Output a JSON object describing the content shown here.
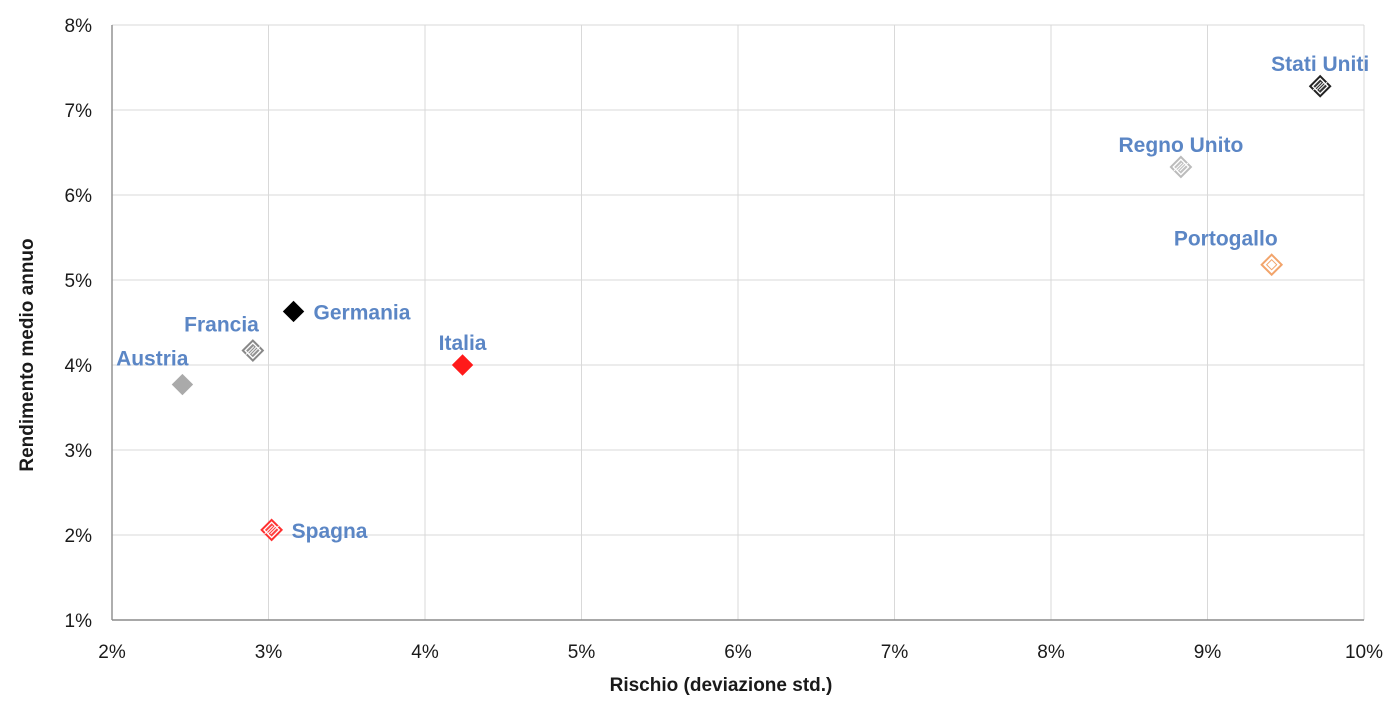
{
  "chart_data": {
    "type": "scatter",
    "title": "",
    "xlabel": "Rischio (deviazione std.)",
    "ylabel": "Rendimento medio annuo",
    "xlim": [
      2,
      10
    ],
    "ylim": [
      1,
      8
    ],
    "x_ticks": [
      {
        "value": 2,
        "label": "2%"
      },
      {
        "value": 3,
        "label": "3%"
      },
      {
        "value": 4,
        "label": "4%"
      },
      {
        "value": 5,
        "label": "5%"
      },
      {
        "value": 6,
        "label": "6%"
      },
      {
        "value": 7,
        "label": "7%"
      },
      {
        "value": 8,
        "label": "8%"
      },
      {
        "value": 9,
        "label": "9%"
      },
      {
        "value": 10,
        "label": "10%"
      }
    ],
    "y_ticks": [
      {
        "value": 1,
        "label": "1%"
      },
      {
        "value": 2,
        "label": "2%"
      },
      {
        "value": 3,
        "label": "3%"
      },
      {
        "value": 4,
        "label": "4%"
      },
      {
        "value": 5,
        "label": "5%"
      },
      {
        "value": 6,
        "label": "6%"
      },
      {
        "value": 7,
        "label": "7%"
      },
      {
        "value": 8,
        "label": "8%"
      }
    ],
    "grid": true,
    "legend": "none",
    "label_color": "#5b86c5",
    "points": [
      {
        "id": "austria",
        "label": "Austria",
        "x": 2.45,
        "y": 3.77,
        "color": "#aaaaaa",
        "style": "filled",
        "label_side": "top-left"
      },
      {
        "id": "francia",
        "label": "Francia",
        "x": 2.9,
        "y": 4.17,
        "color": "#888888",
        "style": "hatched",
        "label_side": "top-left"
      },
      {
        "id": "germania",
        "label": "Germania",
        "x": 3.16,
        "y": 4.63,
        "color": "#000000",
        "style": "filled",
        "label_side": "right"
      },
      {
        "id": "spagna",
        "label": "Spagna",
        "x": 3.02,
        "y": 2.06,
        "color": "#ff3030",
        "style": "hatched",
        "label_side": "right"
      },
      {
        "id": "italia",
        "label": "Italia",
        "x": 4.24,
        "y": 4.0,
        "color": "#ff1a1a",
        "style": "filled",
        "label_side": "top"
      },
      {
        "id": "regno-unito",
        "label": "Regno Unito",
        "x": 8.83,
        "y": 6.33,
        "color": "#bbbbbb",
        "style": "hatched",
        "label_side": "top"
      },
      {
        "id": "portogallo",
        "label": "Portogallo",
        "x": 9.41,
        "y": 5.18,
        "color": "#f2a46b",
        "style": "outline",
        "label_side": "top-left"
      },
      {
        "id": "stati-uniti",
        "label": "Stati Uniti",
        "x": 9.72,
        "y": 7.28,
        "color": "#222222",
        "style": "hatched",
        "label_side": "top"
      }
    ]
  }
}
